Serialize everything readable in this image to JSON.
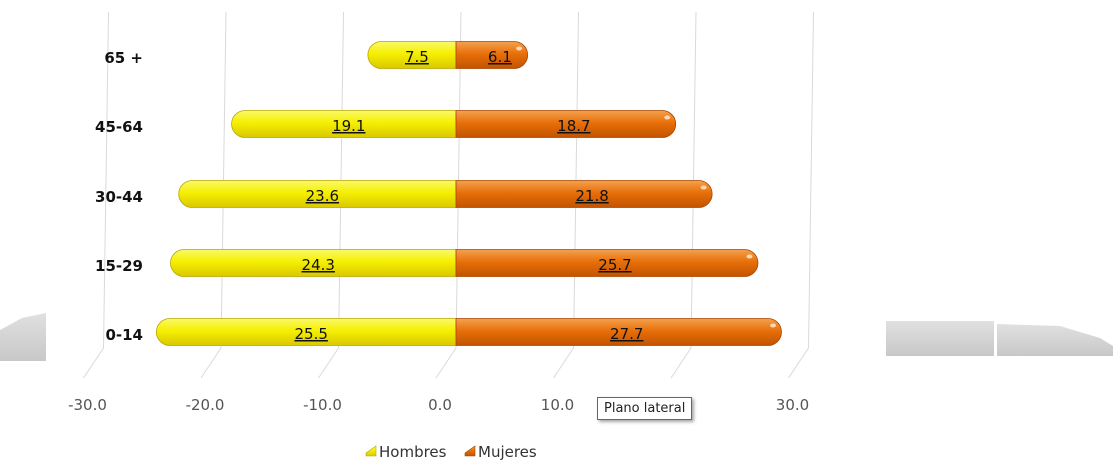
{
  "chart_data": {
    "type": "bar",
    "orientation": "horizontal",
    "layout": "diverging",
    "categories": [
      "65 +",
      "45-64",
      "30-44",
      "15-29",
      "0-14"
    ],
    "series": [
      {
        "name": "Hombres",
        "values": [
          7.5,
          19.1,
          23.6,
          24.3,
          25.5
        ],
        "labels": [
          "7.5",
          "19.1",
          "23.6",
          "24.3",
          "25.5"
        ],
        "direction": "negative",
        "color": "#f7f000"
      },
      {
        "name": "Mujeres",
        "values": [
          6.1,
          18.7,
          21.8,
          25.7,
          27.7
        ],
        "labels": [
          "6.1",
          "18.7",
          "21.8",
          "25.7",
          "27.7"
        ],
        "direction": "positive",
        "color": "#e8700a"
      }
    ],
    "xlim": [
      -30,
      30
    ],
    "xticks": [
      "-30.0",
      "-20.0",
      "-10.0",
      "0.0",
      "10.0",
      "20.0",
      "30.0"
    ],
    "grid": "vertical",
    "legend_position": "bottom"
  },
  "tooltip": {
    "text": "Plano lateral"
  }
}
